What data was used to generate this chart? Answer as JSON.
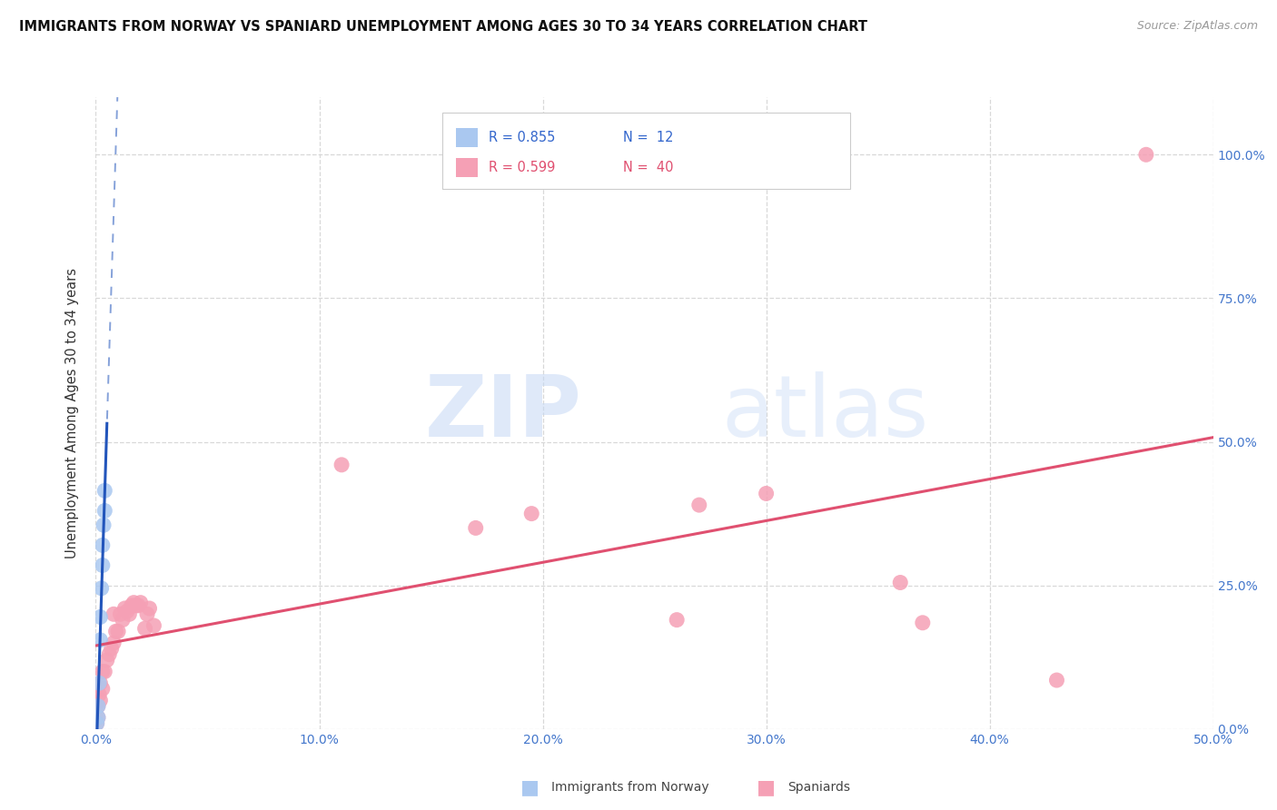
{
  "title": "IMMIGRANTS FROM NORWAY VS SPANIARD UNEMPLOYMENT AMONG AGES 30 TO 34 YEARS CORRELATION CHART",
  "source": "Source: ZipAtlas.com",
  "ylabel": "Unemployment Among Ages 30 to 34 years",
  "xlim": [
    0.0,
    0.5
  ],
  "ylim": [
    0.0,
    1.1
  ],
  "xticks": [
    0.0,
    0.1,
    0.2,
    0.3,
    0.4,
    0.5
  ],
  "yticks": [
    0.0,
    0.25,
    0.5,
    0.75,
    1.0
  ],
  "xtick_labels": [
    "0.0%",
    "10.0%",
    "20.0%",
    "30.0%",
    "40.0%",
    "50.0%"
  ],
  "ytick_labels": [
    "0.0%",
    "25.0%",
    "50.0%",
    "75.0%",
    "100.0%"
  ],
  "norway_R": 0.855,
  "norway_N": 12,
  "spaniard_R": 0.599,
  "spaniard_N": 40,
  "norway_color": "#aac8f0",
  "norway_line_color": "#2255bb",
  "spaniard_color": "#f5a0b5",
  "spaniard_line_color": "#e05070",
  "norway_x": [
    0.0005,
    0.001,
    0.001,
    0.0015,
    0.002,
    0.002,
    0.0025,
    0.003,
    0.003,
    0.0035,
    0.004,
    0.004
  ],
  "norway_y": [
    0.01,
    0.02,
    0.04,
    0.08,
    0.155,
    0.195,
    0.245,
    0.285,
    0.32,
    0.355,
    0.38,
    0.415
  ],
  "spaniard_x": [
    0.0005,
    0.001,
    0.001,
    0.0015,
    0.002,
    0.002,
    0.003,
    0.003,
    0.004,
    0.005,
    0.006,
    0.007,
    0.008,
    0.008,
    0.009,
    0.01,
    0.011,
    0.012,
    0.013,
    0.014,
    0.015,
    0.016,
    0.017,
    0.018,
    0.019,
    0.02,
    0.022,
    0.023,
    0.024,
    0.026,
    0.11,
    0.17,
    0.195,
    0.26,
    0.27,
    0.3,
    0.36,
    0.37,
    0.43,
    0.47
  ],
  "spaniard_y": [
    0.01,
    0.02,
    0.04,
    0.06,
    0.05,
    0.08,
    0.07,
    0.1,
    0.1,
    0.12,
    0.13,
    0.14,
    0.15,
    0.2,
    0.17,
    0.17,
    0.2,
    0.19,
    0.21,
    0.205,
    0.2,
    0.215,
    0.22,
    0.215,
    0.215,
    0.22,
    0.175,
    0.2,
    0.21,
    0.18,
    0.46,
    0.35,
    0.375,
    0.19,
    0.39,
    0.41,
    0.255,
    0.185,
    0.085,
    1.0
  ],
  "watermark_zip": "ZIP",
  "watermark_atlas": "atlas",
  "background_color": "#ffffff",
  "grid_color": "#d8d8d8",
  "norway_line_solid_xmax": 0.005,
  "norway_line_dash_xmax": 0.5,
  "spaniard_line_xmin": 0.0,
  "spaniard_line_xmax": 0.5
}
